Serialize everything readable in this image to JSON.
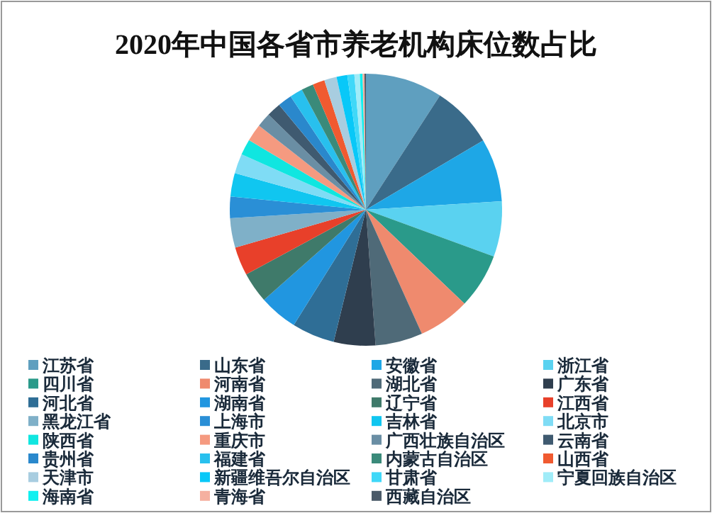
{
  "chart_data": {
    "type": "pie",
    "title": "2020年中国各省市养老机构床位数占比",
    "categories": [
      "江苏省",
      "山东省",
      "安徽省",
      "浙江省",
      "四川省",
      "河南省",
      "湖北省",
      "广东省",
      "河北省",
      "湖南省",
      "辽宁省",
      "江西省",
      "黑龙江省",
      "上海市",
      "吉林省",
      "北京市",
      "陕西省",
      "重庆市",
      "广西壮族自治区",
      "云南省",
      "贵州省",
      "福建省",
      "内蒙古自治区",
      "山西省",
      "天津市",
      "新疆维吾尔自治区",
      "甘肃省",
      "宁夏回族自治区",
      "海南省",
      "青海省",
      "西藏自治区"
    ],
    "values": [
      9.15,
      7.36,
      7.5,
      6.58,
      6.53,
      6.14,
      5.61,
      4.94,
      5.08,
      4.58,
      3.64,
      3.39,
      3.5,
      2.56,
      2.78,
      2.33,
      1.89,
      2.06,
      1.69,
      1.69,
      1.67,
      1.53,
      1.44,
      1.42,
      1.47,
      1.28,
      0.83,
      0.64,
      0.33,
      0.22,
      0.17
    ],
    "colors": [
      "#5f9fbf",
      "#3a6b8a",
      "#1ea7e6",
      "#5ad2f0",
      "#2a9a8a",
      "#ef8a6e",
      "#4f6a78",
      "#2f3e4e",
      "#2f6e96",
      "#2196e0",
      "#3f7a6a",
      "#e8402a",
      "#7fb0c8",
      "#2a8fd6",
      "#10c6f0",
      "#7fdcf5",
      "#10e6e0",
      "#f59a80",
      "#6a8ea4",
      "#3f5a70",
      "#2a88cc",
      "#28c0ee",
      "#3a8a7a",
      "#f05a30",
      "#a8cde0",
      "#08c8f8",
      "#40d8f8",
      "#a0ecf8",
      "#10f0f0",
      "#f5b0a0",
      "#4a5a68"
    ],
    "legend": "bottom"
  }
}
